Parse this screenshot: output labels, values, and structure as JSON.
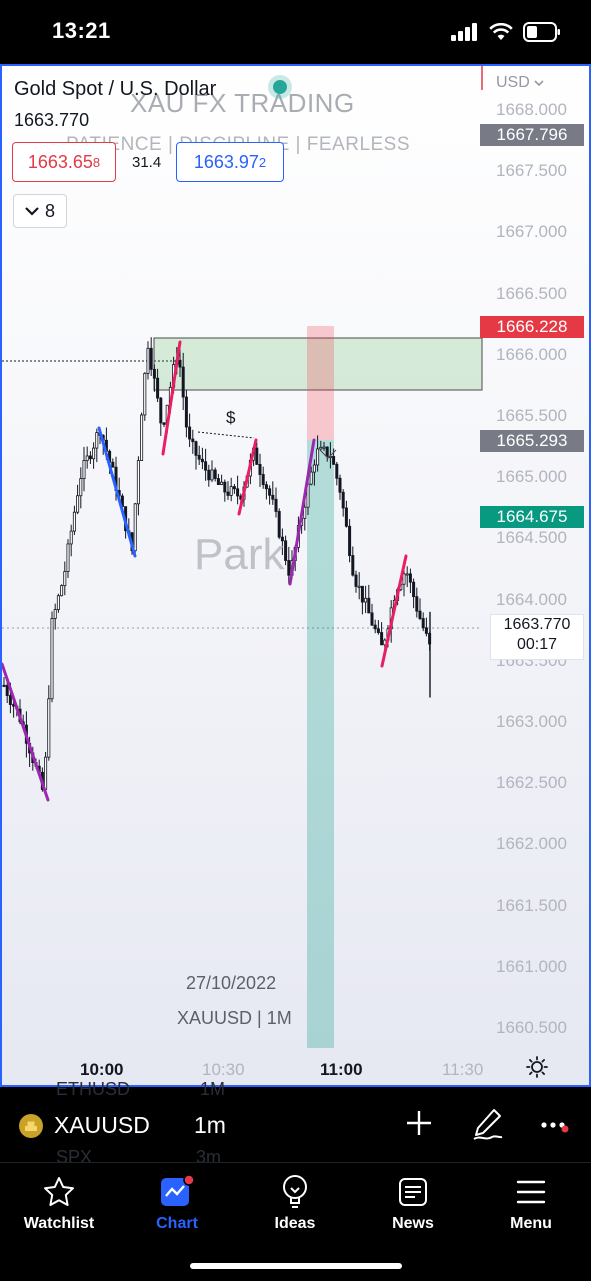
{
  "status_bar": {
    "time": "13:21"
  },
  "chart": {
    "symbol_title": "Gold Spot / U.S. Dollar",
    "last_price": "1663.770",
    "watermark_title": "XAU FX TRADING",
    "watermark_subtitle": "PATIENCE  |  DISCIPLINE  |  FEARLESS",
    "bid": {
      "main": "1663.65",
      "sup": "8"
    },
    "ask": {
      "main": "1663.97",
      "sup": "2"
    },
    "spread": "31.4",
    "indicator_count": "8",
    "currency": "USD",
    "price_axis": [
      "1668.000",
      "1667.500",
      "1667.000",
      "1666.500",
      "1666.000",
      "1665.500",
      "1665.000",
      "1664.500",
      "1664.000",
      "1663.500",
      "1663.000",
      "1662.500",
      "1662.000",
      "1661.500",
      "1661.000",
      "1660.500"
    ],
    "price_tags": [
      {
        "value": "1667.796",
        "color": "#787b86"
      },
      {
        "value": "1666.228",
        "color": "#e53946"
      },
      {
        "value": "1665.293",
        "color": "#787b86"
      },
      {
        "value": "1664.675",
        "color": "#089981"
      }
    ],
    "current_price": "1663.770",
    "countdown": "00:17",
    "time_axis": [
      {
        "label": "10:00",
        "bold": true
      },
      {
        "label": "10:30",
        "bold": false
      },
      {
        "label": "11:00",
        "bold": true
      },
      {
        "label": "11:30",
        "bold": false
      }
    ],
    "date_watermark": "27/10/2022",
    "symbol_watermark": "XAUUSD | 1M",
    "text_note": "Park",
    "annotation_dollar": "$"
  },
  "toolbar": {
    "symbol": "XAUUSD",
    "interval": "1m",
    "ghost_rows": [
      {
        "symbol": "ETHUSD",
        "interval": "1M"
      },
      {
        "symbol": "SPX",
        "interval": "3m"
      }
    ]
  },
  "tabs": [
    {
      "label": "Watchlist",
      "icon": "star-icon",
      "active": false
    },
    {
      "label": "Chart",
      "icon": "chart-icon",
      "active": true
    },
    {
      "label": "Ideas",
      "icon": "lightbulb-icon",
      "active": false
    },
    {
      "label": "News",
      "icon": "news-icon",
      "active": false
    },
    {
      "label": "Menu",
      "icon": "hamburger-icon",
      "active": false
    }
  ],
  "colors": {
    "accent": "#2962ff",
    "bearish": "#e53946",
    "bullish": "#089981",
    "drawing_blue": "#2962ff",
    "drawing_pink": "#e91e63",
    "drawing_purple": "#9c27b0"
  }
}
